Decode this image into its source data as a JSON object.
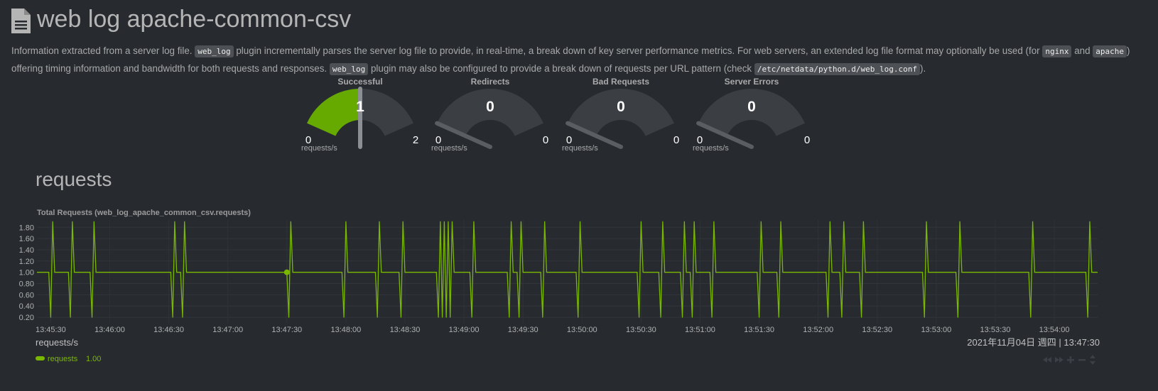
{
  "header": {
    "title": "web log apache-common-csv"
  },
  "description": [
    {
      "text": "Information extracted from a server log file. "
    },
    {
      "code": "web_log"
    },
    {
      "text": " plugin incrementally parses the server log file to provide, in real-time, a break down of key server performance metrics. For web servers, an extended log file format may optionally be used (for "
    },
    {
      "code": "nginx"
    },
    {
      "text": " and "
    },
    {
      "code": "apache"
    },
    {
      "text": ") offering timing information and bandwidth for both requests and responses. "
    },
    {
      "code": "web_log"
    },
    {
      "text": " plugin may also be configured to provide a break down of requests per URL pattern (check "
    },
    {
      "code": "/etc/netdata/python.d/web_log.conf"
    },
    {
      "text": ")."
    }
  ],
  "gauges": [
    {
      "title": "Successful",
      "value": 1,
      "min": 0,
      "max": 2,
      "units": "requests/s",
      "color": "#66aa00"
    },
    {
      "title": "Redirects",
      "value": 0,
      "min": 0,
      "max": 0,
      "units": "requests/s",
      "color": "#66aa00"
    },
    {
      "title": "Bad Requests",
      "value": 0,
      "min": 0,
      "max": 0,
      "units": "requests/s",
      "color": "#66aa00"
    },
    {
      "title": "Server Errors",
      "value": 0,
      "min": 0,
      "max": 0,
      "units": "requests/s",
      "color": "#66aa00"
    }
  ],
  "section_title": "requests",
  "chart_data": {
    "type": "line",
    "title": "Total Requests (web_log_apache_common_csv.requests)",
    "units": "requests/s",
    "timestamp": "2021年11月04日 週四 | 13:47:30",
    "grid": true,
    "xlim": [
      23,
      562
    ],
    "ylim": [
      0.1,
      1.93
    ],
    "yticks": [
      {
        "value": 0.2,
        "label": "0.20"
      },
      {
        "value": 0.4,
        "label": "0.40"
      },
      {
        "value": 0.6,
        "label": "0.60"
      },
      {
        "value": 0.8,
        "label": "0.80"
      },
      {
        "value": 1,
        "label": "1.00"
      },
      {
        "value": 1.2,
        "label": "1.20"
      },
      {
        "value": 1.4,
        "label": "1.40"
      },
      {
        "value": 1.6,
        "label": "1.60"
      },
      {
        "value": 1.8,
        "label": "1.80"
      }
    ],
    "xticks": [
      {
        "value": 30,
        "label": "13:45:30"
      },
      {
        "value": 60,
        "label": "13:46:00"
      },
      {
        "value": 90,
        "label": "13:46:30"
      },
      {
        "value": 120,
        "label": "13:47:00"
      },
      {
        "value": 150,
        "label": "13:47:30"
      },
      {
        "value": 180,
        "label": "13:48:00"
      },
      {
        "value": 210,
        "label": "13:48:30"
      },
      {
        "value": 240,
        "label": "13:49:00"
      },
      {
        "value": 270,
        "label": "13:49:30"
      },
      {
        "value": 300,
        "label": "13:50:00"
      },
      {
        "value": 330,
        "label": "13:50:30"
      },
      {
        "value": 360,
        "label": "13:51:00"
      },
      {
        "value": 390,
        "label": "13:51:30"
      },
      {
        "value": 420,
        "label": "13:52:00"
      },
      {
        "value": 450,
        "label": "13:52:30"
      },
      {
        "value": 480,
        "label": "13:53:00"
      },
      {
        "value": 510,
        "label": "13:53:30"
      },
      {
        "value": 540,
        "label": "13:54:00"
      }
    ],
    "x": [
      23,
      29,
      30,
      31,
      32,
      39,
      40,
      41,
      42,
      50,
      51,
      52,
      53,
      91,
      92,
      93,
      94,
      96,
      97,
      98,
      99,
      150,
      151,
      152,
      153,
      178,
      179,
      180,
      181,
      195,
      196,
      197,
      198,
      207,
      208,
      209,
      210,
      226,
      227,
      228,
      229,
      230,
      231,
      232,
      233,
      234,
      235,
      243,
      244,
      245,
      246,
      262,
      263,
      264,
      265,
      267,
      268,
      269,
      270,
      279,
      280,
      281,
      282,
      297,
      298,
      299,
      300,
      328,
      329,
      330,
      331,
      339,
      340,
      341,
      342,
      350,
      351,
      352,
      353,
      355,
      356,
      357,
      358,
      365,
      366,
      367,
      368,
      389,
      390,
      391,
      392,
      399,
      400,
      401,
      402,
      424,
      425,
      426,
      427,
      431,
      432,
      433,
      434,
      441,
      442,
      443,
      444,
      473,
      474,
      475,
      476,
      490,
      491,
      492,
      493,
      527,
      528,
      529,
      530,
      556,
      557,
      558,
      559,
      562
    ],
    "series": [
      {
        "name": "requests",
        "color": "#7ab800",
        "value_label": "1.00",
        "values": [
          1,
          1,
          0.2,
          1.9,
          1,
          1,
          0.2,
          1.9,
          1,
          1,
          0.2,
          1.9,
          1,
          1,
          0.2,
          1.9,
          1,
          1,
          0.2,
          1.9,
          1,
          1,
          0.2,
          1.9,
          1,
          1,
          0.2,
          1.9,
          1,
          1,
          0.2,
          1.9,
          1,
          1,
          0.2,
          1.9,
          1,
          1,
          0.2,
          1.9,
          0.2,
          1.9,
          0.2,
          1.9,
          0.2,
          1.9,
          1,
          1,
          0.2,
          1.9,
          1,
          1,
          0.2,
          1.9,
          1,
          1,
          0.2,
          1.9,
          1,
          1,
          0.2,
          1.9,
          1,
          1,
          0.2,
          1.9,
          1,
          1,
          0.2,
          1.9,
          1,
          1,
          0.2,
          1.9,
          1,
          1,
          0.2,
          1.9,
          1,
          1,
          0.2,
          1.9,
          1,
          1,
          0.2,
          1.9,
          1,
          1,
          0.2,
          1.9,
          1,
          1,
          0.2,
          1.9,
          1,
          1,
          0.2,
          1.9,
          1,
          1,
          0.2,
          1.9,
          1,
          1,
          0.2,
          1.9,
          1,
          1,
          0.2,
          1.9,
          1,
          1,
          0.2,
          1.9,
          1,
          1,
          0.2,
          1.9,
          1,
          1,
          0.2,
          1.9,
          1,
          1
        ]
      }
    ],
    "highlight": {
      "x": 150,
      "value": 1
    }
  }
}
